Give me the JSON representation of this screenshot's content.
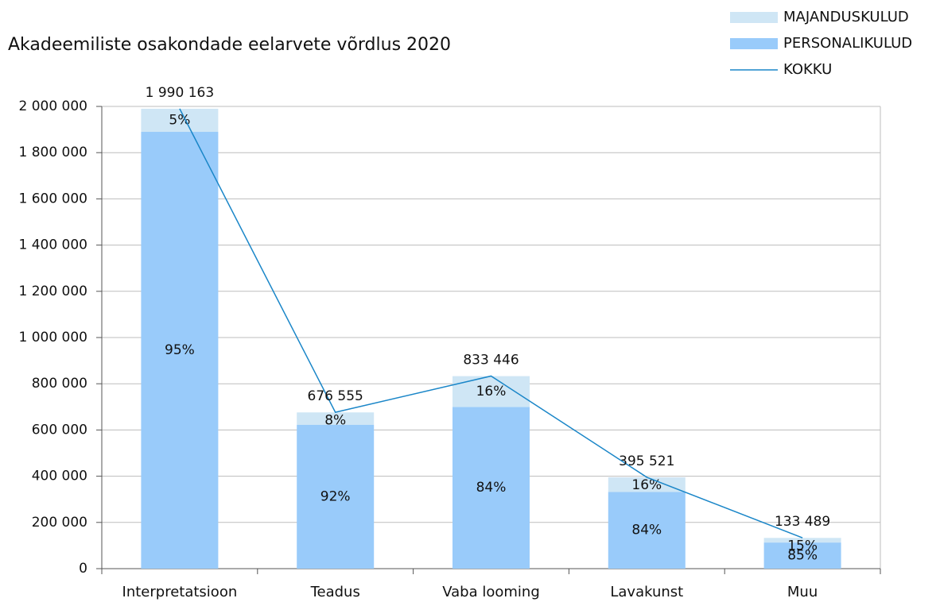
{
  "chart_data": {
    "type": "bar",
    "stacked": true,
    "title": "Akadeemiliste osakondade eelarvete võrdlus 2020",
    "categories": [
      "Interpretatsioon",
      "Teadus",
      "Vaba looming",
      "Lavakunst",
      "Muu"
    ],
    "series": [
      {
        "name": "MAJANDUSKULUD",
        "color": "#cfe6f5",
        "values": [
          100000,
          54000,
          133000,
          63000,
          20000
        ],
        "data_labels": [
          "5%",
          "8%",
          "16%",
          "16%",
          "15%"
        ]
      },
      {
        "name": "PERSONALIKULUD",
        "color": "#99cbfa",
        "values": [
          1890000,
          622000,
          700000,
          332000,
          113000
        ],
        "data_labels": [
          "95%",
          "92%",
          "84%",
          "84%",
          "85%"
        ]
      },
      {
        "name": "KOKKU",
        "type": "line",
        "color": "#1a86c8",
        "values": [
          1990163,
          676555,
          833446,
          395521,
          133489
        ],
        "value_labels": [
          "1 990 163",
          "676 555",
          "833 446",
          "395 521",
          "133 489"
        ]
      }
    ],
    "ylim": [
      0,
      2000000
    ],
    "yticks": [
      {
        "value": 0,
        "label": "0"
      },
      {
        "value": 200000,
        "label": "200 000"
      },
      {
        "value": 400000,
        "label": "400 000"
      },
      {
        "value": 600000,
        "label": "600 000"
      },
      {
        "value": 800000,
        "label": "800 000"
      },
      {
        "value": 1000000,
        "label": "1 000 000"
      },
      {
        "value": 1200000,
        "label": "1 200 000"
      },
      {
        "value": 1400000,
        "label": "1 400 000"
      },
      {
        "value": 1600000,
        "label": "1 600 000"
      },
      {
        "value": 1800000,
        "label": "1 800 000"
      },
      {
        "value": 2000000,
        "label": "2 000 000"
      }
    ],
    "grid": true,
    "legend": "top-right"
  }
}
